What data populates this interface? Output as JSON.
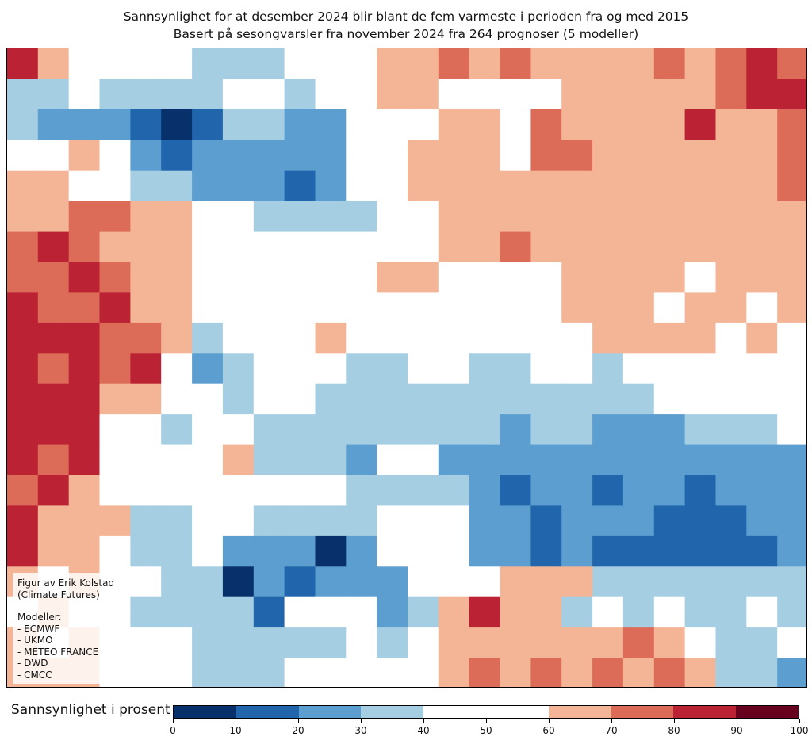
{
  "title": {
    "line1": "Sannsynlighet for at desember 2024 blir blant de fem varmeste i perioden fra og med 2015",
    "line2": "Basert på sesongvarsler fra november 2024 fra 264 prognoser (5 modeller)"
  },
  "annotation": {
    "credit1": "Figur av Erik Kolstad",
    "credit2": "(Climate Futures)",
    "models_header": "Modeller:",
    "models": [
      "- ECMWF",
      "- UKMO",
      "- METEO FRANCE",
      "- DWD",
      "- CMCC"
    ]
  },
  "colorbar": {
    "label": "Sannsynlighet i prosent",
    "ticks": [
      "0",
      "10",
      "20",
      "30",
      "40",
      "50",
      "60",
      "70",
      "80",
      "90",
      "100"
    ],
    "bins": [
      {
        "code": "a",
        "range": [
          0,
          10
        ],
        "color": "#08306b"
      },
      {
        "code": "b",
        "range": [
          10,
          20
        ],
        "color": "#2166ac"
      },
      {
        "code": "c",
        "range": [
          20,
          30
        ],
        "color": "#5b9ecf"
      },
      {
        "code": "d",
        "range": [
          30,
          40
        ],
        "color": "#a6cee3"
      },
      {
        "code": "w",
        "range": [
          40,
          60
        ],
        "color": "#ffffff"
      },
      {
        "code": "e",
        "range": [
          60,
          70
        ],
        "color": "#f4b596"
      },
      {
        "code": "f",
        "range": [
          70,
          80
        ],
        "color": "#dc6b58"
      },
      {
        "code": "g",
        "range": [
          80,
          90
        ],
        "color": "#bb2233"
      },
      {
        "code": "h",
        "range": [
          90,
          100
        ],
        "color": "#67001f"
      }
    ]
  },
  "probability_grid": [
    "gewwwwdddwwweefefeeeefefgf",
    "ddwddddwwdwweewwwweeeeefgg",
    "dcccbabddccwwweewfeeeegeef",
    "wwewcbcccccwweeewffeeeeeef",
    "eewwddcccbcwweeeeeeeeeeeef",
    "eeffeewwddddwweeeeeeeeeeee",
    "fgfeeewwwwwwwweefeeeeeeeee",
    "ffgfeewwwwwweewwwweeeeweee",
    "gffgeewwwwwwwwwwwweeeweewe",
    "gggffedwwwewwwwwwwweeeewew",
    "gfgfgwcdwwwddwwddwwdwwwwww",
    "gggeewwdwwdddddddddddwwwww",
    "gggwwdwwddddddddcddcccdddw",
    "gfgwwwwedddcwwcccccccccccc",
    "fgewwwwwwwwddddcbccbccbccc",
    "geeeddwwddddwwwccbcccbbbcc",
    "geewddwcccacwwwccbcbbbbbbc",
    "ewewwddacbcccwwweeeddddddd",
    "wewwddddbwwwcdegeedwdwddwd",
    "ewewwwdddddwdweeeeeefewddw",
    "eeewwwdddwwwwwefefefefeddc"
  ]
}
